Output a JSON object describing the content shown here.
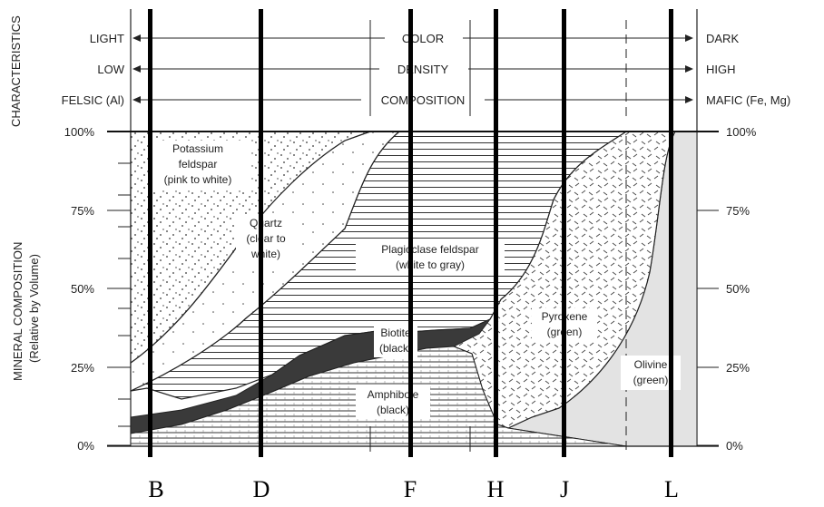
{
  "characteristics": {
    "side_label": "CHARACTERISTICS",
    "rows": [
      {
        "left": "LIGHT",
        "mid": "COLOR",
        "right": "DARK"
      },
      {
        "left": "LOW",
        "mid": "DENSITY",
        "right": "HIGH"
      },
      {
        "left": "FELSIC (Al)",
        "mid": "COMPOSITION",
        "right": "MAFIC  (Fe, Mg)"
      }
    ]
  },
  "y_axis": {
    "label_line1": "MINERAL COMPOSITION",
    "label_line2": "(Relative by Volume)",
    "left_ticks": [
      "100%",
      "75%",
      "50%",
      "25%",
      "0%"
    ],
    "right_ticks": [
      "100%",
      "75%",
      "50%",
      "25%",
      "0%"
    ]
  },
  "minerals": {
    "potassium": [
      "Potassium",
      "feldspar",
      "(pink to white)"
    ],
    "quartz": [
      "Quartz",
      "(clear to",
      "white)"
    ],
    "plagioclase": [
      "Plagioclase feldspar",
      "(white to gray)"
    ],
    "biotite": [
      "Biotite",
      "(black)"
    ],
    "amphibole": [
      "Amphibole",
      "(black)"
    ],
    "pyroxene": [
      "Pyroxene",
      "(green)"
    ],
    "olivine": [
      "Olivine",
      "(green)"
    ]
  },
  "columns": [
    "B",
    "D",
    "F",
    "H",
    "J",
    "L"
  ],
  "colors": {
    "line": "#222222",
    "dark_fill": "#3a3a3a",
    "olivine_fill": "#e3e3e3",
    "column_bar": "#000000"
  }
}
